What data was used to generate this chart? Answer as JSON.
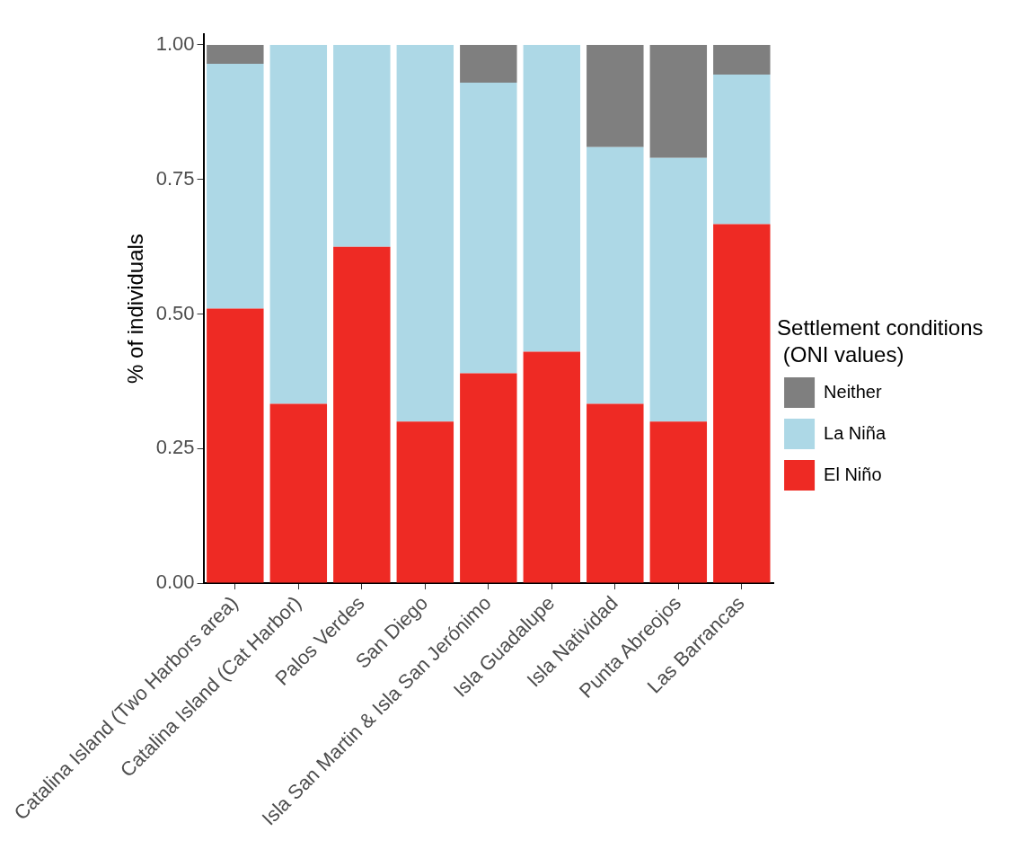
{
  "chart_data": {
    "type": "bar",
    "stacked": true,
    "ylabel": "% of individuals",
    "legend_title": "Settlement conditions\n (ONI values)",
    "legend": "right",
    "grid": false,
    "categories": [
      "Catalina Island (Two Harbors area)",
      "Catalina Island (Cat Harbor)",
      "Palos Verdes",
      "San Diego",
      "Isla San Martin & Isla San Jerónimo",
      "Isla Guadalupe",
      "Isla Natividad",
      "Punta Abreojos",
      "Las Barrancas"
    ],
    "ylim": [
      0,
      1.02
    ],
    "yticks": [
      {
        "value": 0,
        "label": "0.00"
      },
      {
        "value": 0.25,
        "label": "0.25"
      },
      {
        "value": 0.5,
        "label": "0.50"
      },
      {
        "value": 0.75,
        "label": "0.75"
      },
      {
        "value": 1,
        "label": "1.00"
      }
    ],
    "series": [
      {
        "name": "El Niño",
        "color": "#ee2a24",
        "values": [
          0.51,
          0.333,
          0.625,
          0.3,
          0.39,
          0.43,
          0.333,
          0.3,
          0.667
        ]
      },
      {
        "name": "La Niña",
        "color": "#add8e6",
        "values": [
          0.455,
          0.667,
          0.375,
          0.7,
          0.54,
          0.57,
          0.477,
          0.49,
          0.278
        ]
      },
      {
        "name": "Neither",
        "color": "#7f7f7f",
        "values": [
          0.035,
          0,
          0,
          0,
          0.07,
          0,
          0.19,
          0.21,
          0.055
        ]
      }
    ]
  }
}
